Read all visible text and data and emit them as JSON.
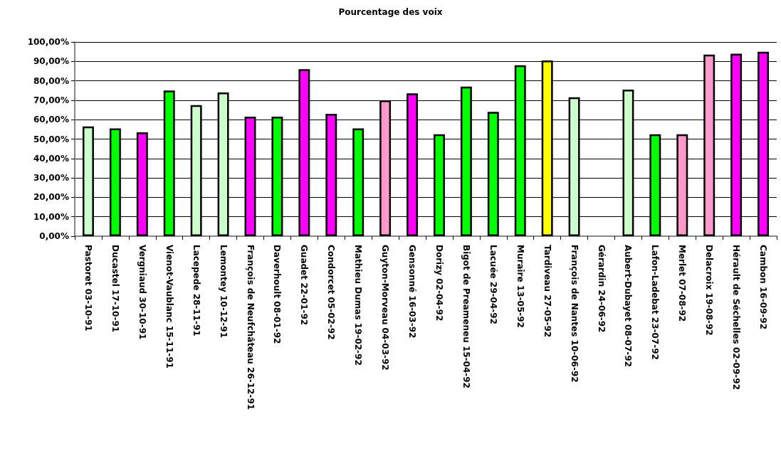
{
  "chart_data": {
    "type": "bar",
    "title": "Pourcentage des voix",
    "categories": [
      "Pastoret 03-10-91",
      "Ducastel 17-10-91",
      "Vergniaud 30-10-91",
      "Vienot-Vaublanc 15-11-91",
      "Lacepede 28-11-91",
      "Lemontey 10-12-91",
      "François de Neufchâteau 26-12-91",
      "Daverhoult 08-01-92",
      "Guadet 22-01-92",
      "Condorcet 05-02-92",
      "Mathieu Dumas 19-02-92",
      "Guyton-Morveau 04-03-92",
      "Gensonné 16-03-92",
      "Dorizy 02-04-92",
      "Bigot de Preameneu 15-04-92",
      "Lacuée 29-04-92",
      "Muraire 13-05-92",
      "Tardiveau 27-05-92",
      "François de Nantes 10-06-92",
      "Gérardin 24-06-92",
      "Aubert-Dubayet 08-07-92",
      "Lafon-Ladebat 23-07-92",
      "Merlet 07-08-92",
      "Delacroix 19-08-92",
      "Hérault de Séchelles 02-09-92",
      "Cambon 16-09-92"
    ],
    "values": [
      56.5,
      55.5,
      53.5,
      75,
      67.5,
      74,
      61.5,
      61.5,
      86,
      63,
      55.5,
      70,
      73.5,
      52.5,
      77,
      64,
      88,
      90.5,
      71.5,
      null,
      75.5,
      52.5,
      52.5,
      93.5,
      94,
      95
    ],
    "colors": [
      "#ccffcc",
      "#00ff00",
      "#ff00ff",
      "#00ff00",
      "#ccffcc",
      "#ccffcc",
      "#ff00ff",
      "#00ff00",
      "#ff00ff",
      "#ff00ff",
      "#00ff00",
      "#ff99cc",
      "#ff00ff",
      "#00ff00",
      "#00ff00",
      "#00ff00",
      "#00ff00",
      "#ffff00",
      "#ccffcc",
      null,
      "#ccffcc",
      "#00ff00",
      "#ff99cc",
      "#ff99cc",
      "#ff00ff",
      "#ff00ff"
    ],
    "ylim": [
      0,
      100
    ],
    "yticks": [
      {
        "value": 0,
        "label": "0,00%"
      },
      {
        "value": 10,
        "label": "10,00%"
      },
      {
        "value": 20,
        "label": "20,00%"
      },
      {
        "value": 30,
        "label": "30,00%"
      },
      {
        "value": 40,
        "label": "40,00%"
      },
      {
        "value": 50,
        "label": "50,00%"
      },
      {
        "value": 60,
        "label": "60,00%"
      },
      {
        "value": 70,
        "label": "70,00%"
      },
      {
        "value": 80,
        "label": "80,00%"
      },
      {
        "value": 90,
        "label": "90,00%"
      },
      {
        "value": 100,
        "label": "100,00%"
      }
    ],
    "grid": "y"
  }
}
